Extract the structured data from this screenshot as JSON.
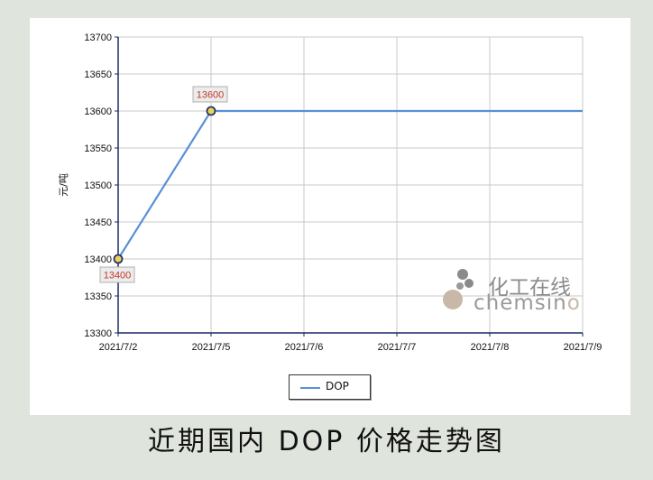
{
  "caption": "近期国内 DOP 价格走势图",
  "watermark": {
    "cn": "化工在线",
    "en_main": "chemsin",
    "en_tail": "o"
  },
  "colors": {
    "line": "#5a8fd6",
    "marker_fill": "#e8d45a",
    "marker_stroke": "#2a3566",
    "label_text": "#c0392b",
    "label_bg": "#ececec",
    "grid": "#c8c8c8",
    "axis": "#1a2a6b"
  },
  "chart_data": {
    "type": "line",
    "title": "",
    "xlabel": "",
    "ylabel": "元/吨",
    "categories": [
      "2021/7/2",
      "2021/7/5",
      "2021/7/6",
      "2021/7/7",
      "2021/7/8",
      "2021/7/9"
    ],
    "ylim": [
      13300,
      13700
    ],
    "yticks": [
      13300,
      13350,
      13400,
      13450,
      13500,
      13550,
      13600,
      13650,
      13700
    ],
    "grid": true,
    "legend_position": "bottom-center",
    "series": [
      {
        "name": "DOP",
        "values": [
          13400,
          13600,
          13600,
          13600,
          13600,
          13600
        ],
        "marked_points": [
          0,
          1
        ],
        "data_labels": [
          {
            "index": 0,
            "text": "13400",
            "placement": "below"
          },
          {
            "index": 1,
            "text": "13600",
            "placement": "above"
          }
        ]
      }
    ]
  }
}
